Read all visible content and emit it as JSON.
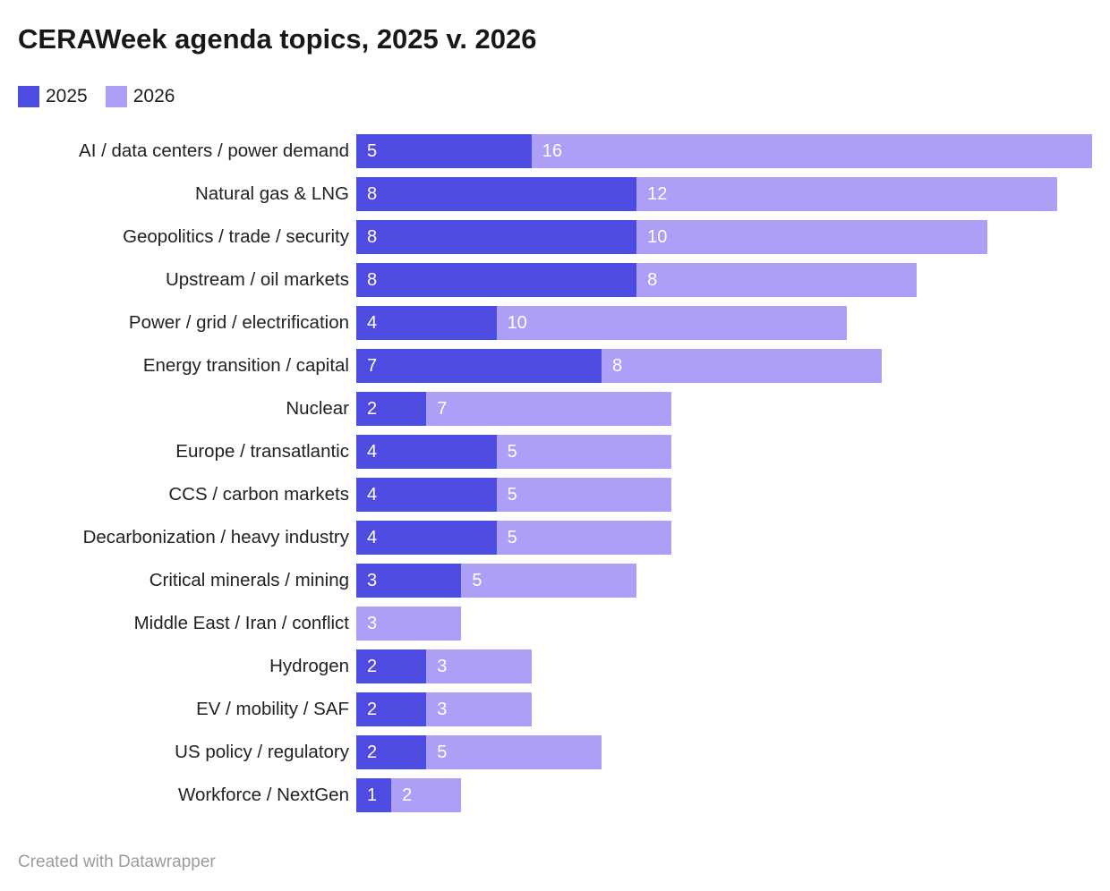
{
  "title": "CERAWeek agenda topics, 2025 v. 2026",
  "footer": "Created with Datawrapper",
  "legend": [
    {
      "label": "2025",
      "color": "#4e4be0"
    },
    {
      "label": "2026",
      "color": "#ad9ff6"
    }
  ],
  "colors": {
    "series_2025": "#4e4be0",
    "series_2026": "#ad9ff6",
    "value_label": "#ffffff",
    "category_label": "#222222",
    "title": "#181818",
    "attribution": "#9b9b9b"
  },
  "chart_data": {
    "type": "bar",
    "orientation": "horizontal",
    "stacked": true,
    "title": "CERAWeek agenda topics, 2025 v. 2026",
    "xlabel": "",
    "ylabel": "",
    "xlim": [
      0,
      21
    ],
    "grid": false,
    "legend_position": "top-left",
    "value_labels": "inside segment start, white, zero values hidden",
    "categories": [
      "AI / data centers / power demand",
      "Natural gas & LNG",
      "Geopolitics / trade / security",
      "Upstream / oil markets",
      "Power / grid / electrification",
      "Energy transition / capital",
      "Nuclear",
      "Europe / transatlantic",
      "CCS / carbon markets",
      "Decarbonization / heavy industry",
      "Critical minerals / mining",
      "Middle East / Iran / conflict",
      "Hydrogen",
      "EV / mobility / SAF",
      "US policy / regulatory",
      "Workforce / NextGen"
    ],
    "series": [
      {
        "name": "2025",
        "color": "#4e4be0",
        "values": [
          5,
          8,
          8,
          8,
          4,
          7,
          2,
          4,
          4,
          4,
          3,
          0,
          2,
          2,
          2,
          1
        ]
      },
      {
        "name": "2026",
        "color": "#ad9ff6",
        "values": [
          16,
          12,
          10,
          8,
          10,
          8,
          7,
          5,
          5,
          5,
          5,
          3,
          3,
          3,
          5,
          2
        ]
      }
    ]
  }
}
